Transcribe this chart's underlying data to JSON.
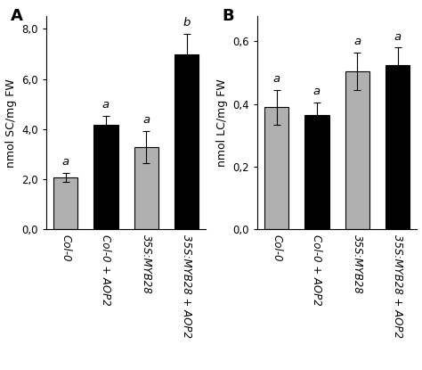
{
  "panel_A": {
    "title": "A",
    "ylabel": "nmol SC/mg FW",
    "categories": [
      "Col-0",
      "Col-0 + AOP2",
      "35S:MYB28",
      "35S:MYB28 + AOP2"
    ],
    "values": [
      2.07,
      4.18,
      3.28,
      7.0
    ],
    "errors": [
      0.18,
      0.35,
      0.65,
      0.8
    ],
    "colors": [
      "#b0b0b0",
      "#000000",
      "#b0b0b0",
      "#000000"
    ],
    "sig_labels": [
      "a",
      "a",
      "a",
      "b"
    ],
    "ylim": [
      0,
      8.5
    ],
    "yticks": [
      0.0,
      2.0,
      4.0,
      6.0,
      8.0
    ],
    "yticklabels": [
      "0,0",
      "2,0",
      "4,0",
      "6,0",
      "8,0"
    ]
  },
  "panel_B": {
    "title": "B",
    "ylabel": "nmol LC/mg FW",
    "categories": [
      "Col-0",
      "Col-0 + AOP2",
      "35S:MYB28",
      "35S:MYB28 + AOP2"
    ],
    "values": [
      0.39,
      0.365,
      0.505,
      0.525
    ],
    "errors": [
      0.055,
      0.04,
      0.06,
      0.055
    ],
    "colors": [
      "#b0b0b0",
      "#000000",
      "#b0b0b0",
      "#000000"
    ],
    "sig_labels": [
      "a",
      "a",
      "a",
      "a"
    ],
    "ylim": [
      0,
      0.68
    ],
    "yticks": [
      0.0,
      0.2,
      0.4,
      0.6
    ],
    "yticklabels": [
      "0,0",
      "0,2",
      "0,4",
      "0,6"
    ]
  },
  "bar_width": 0.6,
  "background_color": "#ffffff",
  "tick_fontsize": 8.5,
  "label_fontsize": 9,
  "sig_fontsize": 9.5,
  "panel_label_fontsize": 13
}
